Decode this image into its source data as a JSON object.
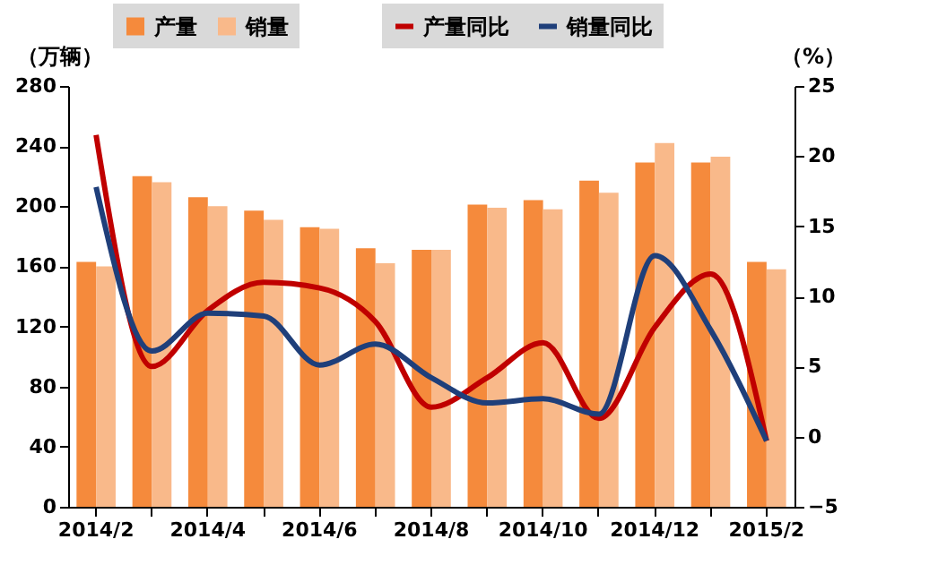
{
  "chart_data": {
    "type": "bar",
    "categories": [
      "2014/2",
      null,
      "2014/4",
      null,
      "2014/6",
      null,
      "2014/8",
      null,
      "2014/10",
      null,
      "2014/12",
      null,
      "2015/2"
    ],
    "series": [
      {
        "name": "产量",
        "color": "#f58a3c",
        "values": [
          163,
          220,
          206,
          197,
          186,
          172,
          171,
          201,
          204,
          217,
          229,
          229,
          163
        ]
      },
      {
        "name": "销量",
        "color": "#f9b98a",
        "values": [
          160,
          216,
          200,
          191,
          185,
          162,
          171,
          199,
          198,
          209,
          242,
          233,
          158
        ]
      },
      {
        "name": "产量同比",
        "type": "line",
        "axis": "y2",
        "color": "#c00000",
        "values": [
          21.5,
          5.0,
          9.0,
          11.0,
          10.6,
          8.2,
          2.1,
          4.2,
          6.7,
          1.3,
          7.8,
          11.6,
          -0.3
        ]
      },
      {
        "name": "销量同比",
        "type": "line",
        "axis": "y2",
        "color": "#1f3f7a",
        "values": [
          17.8,
          6.1,
          8.8,
          8.6,
          5.1,
          6.6,
          4.2,
          2.4,
          2.7,
          1.6,
          12.9,
          7.6,
          -0.3
        ]
      }
    ],
    "ylabel": "（万辆）",
    "y2label": "（%）",
    "ylim": [
      0,
      280
    ],
    "yticks": [
      0,
      40,
      80,
      120,
      160,
      200,
      240,
      280
    ],
    "y2lim": [
      -5,
      25
    ],
    "y2ticks": [
      -5,
      0,
      5,
      10,
      15,
      20,
      25
    ],
    "legend": "top"
  }
}
